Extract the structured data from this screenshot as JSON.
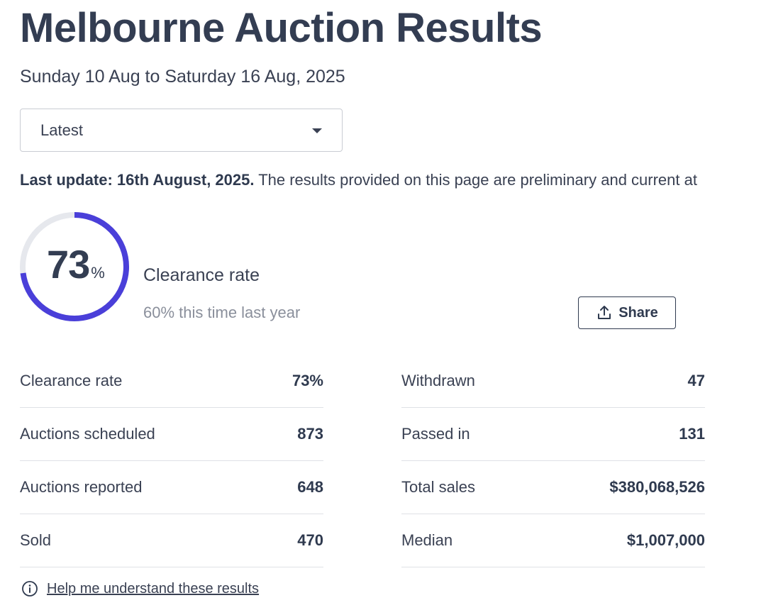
{
  "header": {
    "title": "Melbourne Auction Results",
    "date_range": "Sunday 10 Aug to Saturday 16 Aug, 2025"
  },
  "period_select": {
    "selected": "Latest",
    "icon": "chevron-down-icon"
  },
  "update": {
    "bold": "Last update: 16th August, 2025.",
    "text": " The results provided on this page are preliminary and current at"
  },
  "gauge": {
    "value": "73",
    "unit": "%",
    "fraction": 0.73,
    "label": "Clearance rate",
    "comparison": "60% this time last year",
    "accent_color": "#4a3fd9",
    "track_color": "#e6e8ed"
  },
  "share": {
    "label": "Share",
    "icon": "share-upload-icon"
  },
  "stats": {
    "left": [
      {
        "label": "Clearance rate",
        "value": "73%"
      },
      {
        "label": "Auctions scheduled",
        "value": "873"
      },
      {
        "label": "Auctions reported",
        "value": "648"
      },
      {
        "label": "Sold",
        "value": "470"
      }
    ],
    "right": [
      {
        "label": "Withdrawn",
        "value": "47"
      },
      {
        "label": "Passed in",
        "value": "131"
      },
      {
        "label": "Total sales",
        "value": "$380,068,526"
      },
      {
        "label": "Median",
        "value": "$1,007,000"
      }
    ]
  },
  "help": {
    "label": "Help me understand these results",
    "icon": "info-icon"
  }
}
